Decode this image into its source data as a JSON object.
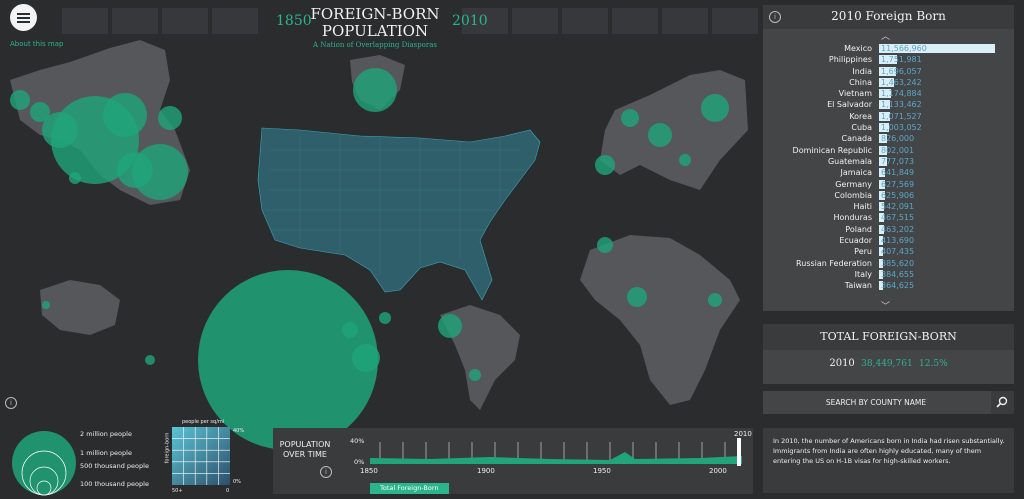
{
  "header": {
    "menu_icon": "hamburger-icon",
    "about_link": "About this map",
    "year_start": "1850",
    "year_end": "2010",
    "title_line1": "FOREIGN-BORN",
    "title_line2": "POPULATION",
    "subtitle": "A Nation of Overlapping Diasporas"
  },
  "ranking": {
    "title": "2010 Foreign Born",
    "items": [
      {
        "name": "Mexico",
        "value": "11,566,960",
        "n": 11566960
      },
      {
        "name": "Philippines",
        "value": "1,751,981",
        "n": 1751981
      },
      {
        "name": "India",
        "value": "1,696,057",
        "n": 1696057
      },
      {
        "name": "China",
        "value": "1,463,242",
        "n": 1463242
      },
      {
        "name": "Vietnam",
        "value": "1,174,884",
        "n": 1174884
      },
      {
        "name": "El Salvador",
        "value": "1,133,462",
        "n": 1133462
      },
      {
        "name": "Korea",
        "value": "1,071,527",
        "n": 1071527
      },
      {
        "name": "Cuba",
        "value": "1,003,052",
        "n": 1003052
      },
      {
        "name": "Canada",
        "value": "826,000",
        "n": 826000
      },
      {
        "name": "Dominican Republic",
        "value": "802,001",
        "n": 802001
      },
      {
        "name": "Guatemala",
        "value": "777,073",
        "n": 777073
      },
      {
        "name": "Jamaica",
        "value": "641,849",
        "n": 641849
      },
      {
        "name": "Germany",
        "value": "627,569",
        "n": 627569
      },
      {
        "name": "Colombia",
        "value": "625,906",
        "n": 625906
      },
      {
        "name": "Haiti",
        "value": "542,091",
        "n": 542091
      },
      {
        "name": "Honduras",
        "value": "467,515",
        "n": 467515
      },
      {
        "name": "Poland",
        "value": "463,202",
        "n": 463202
      },
      {
        "name": "Ecuador",
        "value": "413,690",
        "n": 413690
      },
      {
        "name": "Peru",
        "value": "407,435",
        "n": 407435
      },
      {
        "name": "Russian Federation",
        "value": "385,620",
        "n": 385620
      },
      {
        "name": "Italy",
        "value": "384,655",
        "n": 384655
      },
      {
        "name": "Taiwan",
        "value": "364,625",
        "n": 364625
      }
    ]
  },
  "total": {
    "title": "TOTAL FOREIGN-BORN",
    "year": "2010",
    "count": "38,449,761",
    "percent": "12.5%"
  },
  "search": {
    "label": "SEARCH BY COUNTY NAME",
    "icon": "search-icon"
  },
  "description": "In 2010, the number of Americans born in India had risen substantially. Immigrants from India are often highly educated, many of them entering the US on H-1B visas for high-skilled workers.",
  "legend": {
    "sizes": [
      "2 million people",
      "1 million people",
      "500 thousand people",
      "100 thousand people"
    ],
    "density_title": "people per sq/mi",
    "density_axis": "foreign-born",
    "density_ticks": [
      "40%",
      "0%",
      "50+",
      "0"
    ]
  },
  "timeline": {
    "label_line1": "POPULATION",
    "label_line2": "OVER TIME",
    "y_ticks": [
      "40%",
      "0%"
    ],
    "x_ticks": [
      "1850",
      "1900",
      "1950",
      "2000"
    ],
    "current_year": "2010",
    "button": "Total Foreign-Born"
  },
  "colors": {
    "accent": "#2bb58a",
    "land": "#55575a",
    "bg": "#2b2c2e",
    "panel": "#444547"
  }
}
